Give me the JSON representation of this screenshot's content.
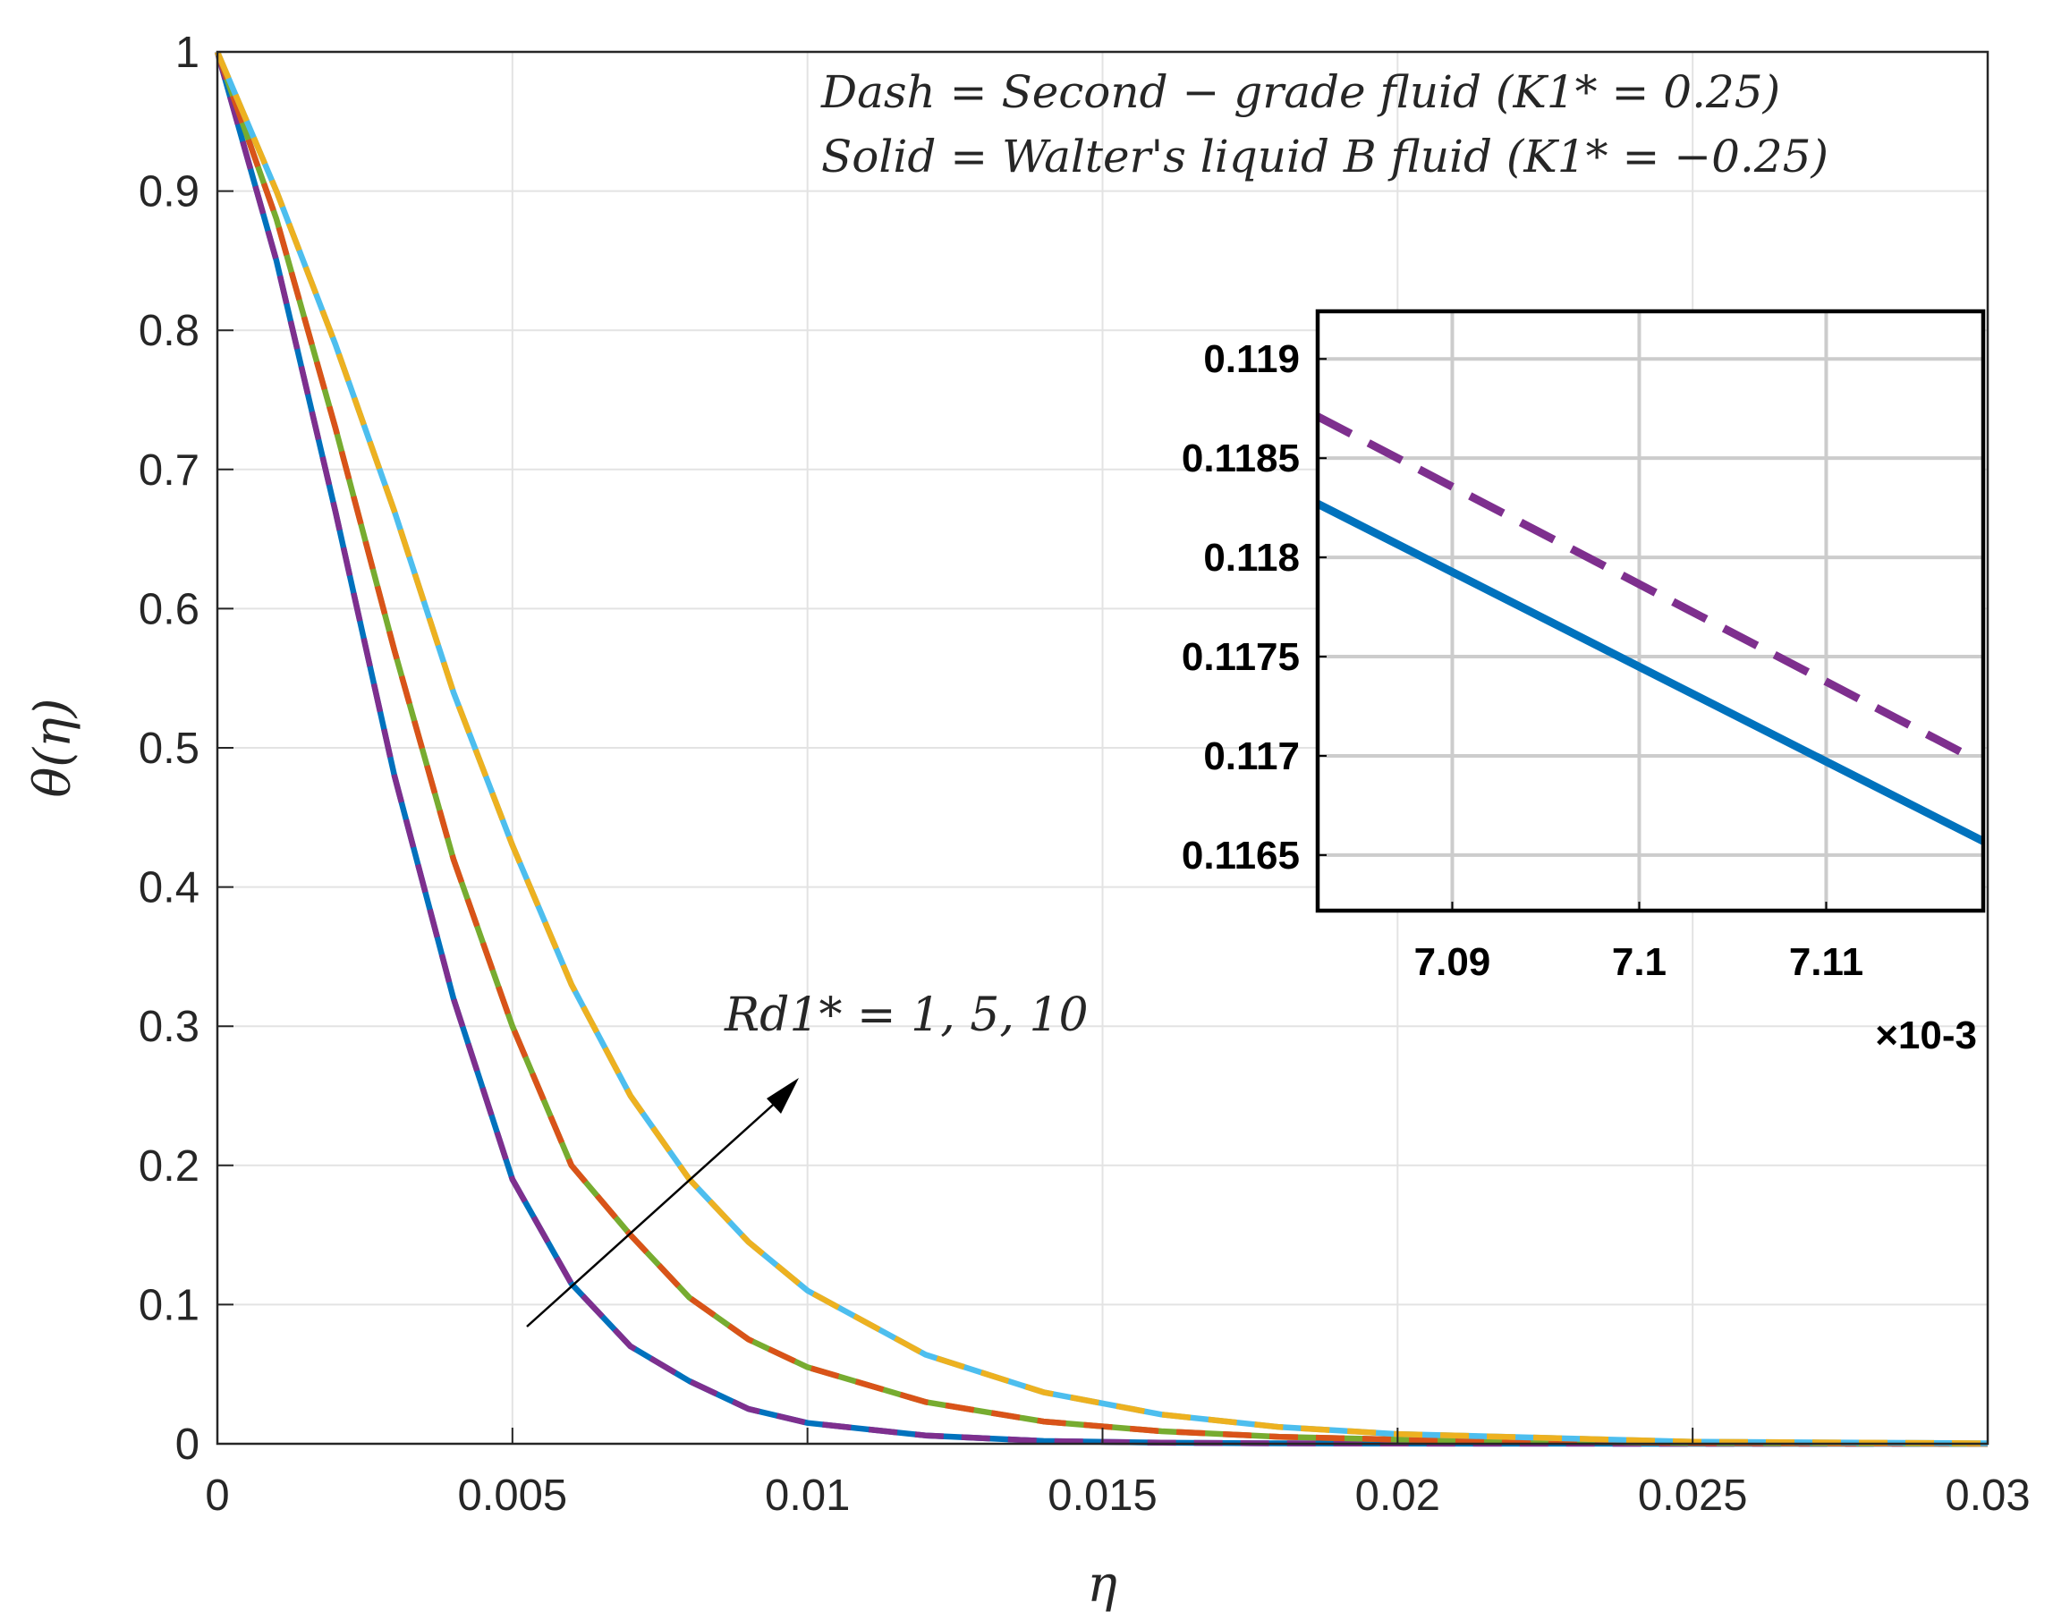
{
  "chart_data": [
    {
      "type": "line",
      "title": "",
      "xlabel": "η",
      "ylabel": "θ(η)",
      "xlim": [
        0,
        0.03
      ],
      "ylim": [
        0,
        1
      ],
      "grid": true,
      "x_ticks": [
        "0",
        "0.005",
        "0.01",
        "0.015",
        "0.02",
        "0.025",
        "0.03"
      ],
      "x_tick_values": [
        0,
        0.005,
        0.01,
        0.015,
        0.02,
        0.025,
        0.03
      ],
      "y_ticks": [
        "0",
        "0.1",
        "0.2",
        "0.3",
        "0.4",
        "0.5",
        "0.6",
        "0.7",
        "0.8",
        "0.9",
        "1"
      ],
      "y_tick_values": [
        0,
        0.1,
        0.2,
        0.3,
        0.4,
        0.5,
        0.6,
        0.7,
        0.8,
        0.9,
        1
      ],
      "series": [
        {
          "name": "Rd1*=1, K1*=-0.25 (Walter's liquid B, solid)",
          "style": "solid",
          "color": "#0072BD",
          "x": [
            0,
            0.001,
            0.002,
            0.003,
            0.004,
            0.005,
            0.006,
            0.007,
            0.008,
            0.009,
            0.01,
            0.012,
            0.014,
            0.016,
            0.018,
            0.02,
            0.025,
            0.03
          ],
          "y": [
            1,
            0.85,
            0.67,
            0.48,
            0.32,
            0.19,
            0.115,
            0.07,
            0.045,
            0.025,
            0.015,
            0.006,
            0.002,
            0.0008,
            0.0003,
            0.0001,
            0,
            0
          ]
        },
        {
          "name": "Rd1*=1, K1*=0.25 (Second-grade, dash)",
          "style": "dash",
          "color": "#7E2F8E",
          "x": [
            0,
            0.001,
            0.002,
            0.003,
            0.004,
            0.005,
            0.006,
            0.007,
            0.008,
            0.009,
            0.01,
            0.012,
            0.014,
            0.016,
            0.018,
            0.02,
            0.025,
            0.03
          ],
          "y": [
            1,
            0.85,
            0.67,
            0.48,
            0.32,
            0.19,
            0.115,
            0.07,
            0.045,
            0.025,
            0.015,
            0.006,
            0.002,
            0.0008,
            0.0003,
            0.0001,
            0,
            0
          ]
        },
        {
          "name": "Rd1*=5, K1*=-0.25 (Walter's liquid B, solid)",
          "style": "solid",
          "color": "#77AC30",
          "x": [
            0,
            0.001,
            0.002,
            0.003,
            0.004,
            0.005,
            0.006,
            0.007,
            0.008,
            0.009,
            0.01,
            0.012,
            0.014,
            0.016,
            0.018,
            0.02,
            0.025,
            0.03
          ],
          "y": [
            1,
            0.88,
            0.73,
            0.57,
            0.42,
            0.3,
            0.2,
            0.15,
            0.105,
            0.075,
            0.055,
            0.03,
            0.016,
            0.009,
            0.005,
            0.003,
            0.0005,
            0
          ]
        },
        {
          "name": "Rd1*=5, K1*=0.25 (Second-grade, dash)",
          "style": "dash",
          "color": "#D95319",
          "x": [
            0,
            0.001,
            0.002,
            0.003,
            0.004,
            0.005,
            0.006,
            0.007,
            0.008,
            0.009,
            0.01,
            0.012,
            0.014,
            0.016,
            0.018,
            0.02,
            0.025,
            0.03
          ],
          "y": [
            1,
            0.88,
            0.73,
            0.57,
            0.42,
            0.3,
            0.2,
            0.15,
            0.105,
            0.075,
            0.055,
            0.03,
            0.016,
            0.009,
            0.005,
            0.003,
            0.0005,
            0
          ]
        },
        {
          "name": "Rd1*=10, K1*=-0.25 (Walter's liquid B, solid)",
          "style": "solid",
          "color": "#4DBEEE",
          "x": [
            0,
            0.001,
            0.002,
            0.003,
            0.004,
            0.005,
            0.006,
            0.007,
            0.008,
            0.009,
            0.01,
            0.012,
            0.014,
            0.016,
            0.018,
            0.02,
            0.025,
            0.03
          ],
          "y": [
            1,
            0.9,
            0.79,
            0.67,
            0.54,
            0.43,
            0.33,
            0.25,
            0.19,
            0.145,
            0.11,
            0.064,
            0.037,
            0.021,
            0.012,
            0.007,
            0.0015,
            0.0003
          ]
        },
        {
          "name": "Rd1*=10, K1*=0.25 (Second-grade, dash)",
          "style": "dash",
          "color": "#EDB120",
          "x": [
            0,
            0.001,
            0.002,
            0.003,
            0.004,
            0.005,
            0.006,
            0.007,
            0.008,
            0.009,
            0.01,
            0.012,
            0.014,
            0.016,
            0.018,
            0.02,
            0.025,
            0.03
          ],
          "y": [
            1,
            0.9,
            0.79,
            0.67,
            0.54,
            0.43,
            0.33,
            0.25,
            0.19,
            0.145,
            0.11,
            0.064,
            0.037,
            0.021,
            0.012,
            0.007,
            0.0015,
            0.0003
          ]
        }
      ],
      "annotations": {
        "legend_line1": "Dash = Second − grade fluid (K1* = 0.25)",
        "legend_line2": "Solid = Walter's liquid B fluid (K1* = −0.25)",
        "arrow_label": "Rd1* = 1, 5, 10"
      }
    },
    {
      "type": "line",
      "title": "inset",
      "xlabel": "",
      "ylabel": "",
      "x_multiplier": "×10-3",
      "xlim": [
        7.0828,
        7.1184
      ],
      "ylim": [
        0.11622,
        0.11924
      ],
      "grid": true,
      "x_ticks": [
        "7.09",
        "7.1",
        "7.11"
      ],
      "x_tick_values": [
        7.09,
        7.1,
        7.11
      ],
      "y_ticks": [
        "0.1165",
        "0.117",
        "0.1175",
        "0.118",
        "0.1185",
        "0.119"
      ],
      "y_tick_values": [
        0.1165,
        0.117,
        0.1175,
        0.118,
        0.1185,
        0.119
      ],
      "series": [
        {
          "name": "solid",
          "style": "solid",
          "color": "#0072BD",
          "x": [
            7.0828,
            7.1184
          ],
          "y": [
            0.11827,
            0.11657
          ]
        },
        {
          "name": "dash",
          "style": "dash",
          "color": "#7E2F8E",
          "x": [
            7.0828,
            7.1172
          ],
          "y": [
            0.11871,
            0.11702
          ]
        }
      ]
    }
  ]
}
